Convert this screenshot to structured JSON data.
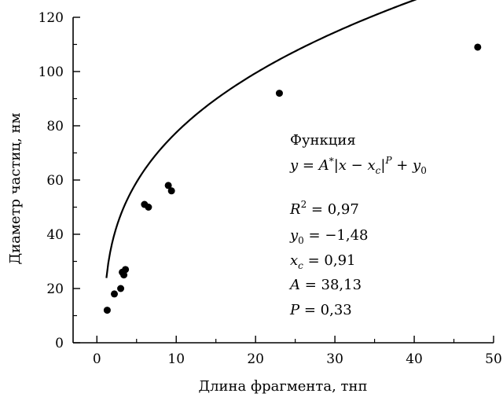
{
  "chart_data": {
    "type": "scatter",
    "xlabel": "Длина фрагмента, тнп",
    "ylabel": "Диаметр частиц, нм",
    "xlim": [
      -3,
      50
    ],
    "ylim": [
      0,
      120
    ],
    "xticks": [
      0,
      10,
      20,
      30,
      40,
      50
    ],
    "yticks": [
      0,
      20,
      40,
      60,
      80,
      100,
      120
    ],
    "xtick_labels": [
      "0",
      "10",
      "20",
      "30",
      "40",
      "50"
    ],
    "ytick_labels": [
      "0",
      "20",
      "40",
      "60",
      "80",
      "100",
      "120"
    ],
    "grid": false,
    "series": [
      {
        "points": [
          {
            "x": 1.3,
            "y": 12
          },
          {
            "x": 2.2,
            "y": 18
          },
          {
            "x": 3.0,
            "y": 20
          },
          {
            "x": 3.2,
            "y": 26
          },
          {
            "x": 3.4,
            "y": 25
          },
          {
            "x": 3.6,
            "y": 27
          },
          {
            "x": 6.0,
            "y": 51
          },
          {
            "x": 6.5,
            "y": 50
          },
          {
            "x": 9.0,
            "y": 58
          },
          {
            "x": 9.4,
            "y": 56
          },
          {
            "x": 23.0,
            "y": 92
          },
          {
            "x": 48.0,
            "y": 109
          }
        ]
      }
    ],
    "fit": {
      "x_range": [
        1.2,
        48
      ],
      "A": 38.13,
      "xc": 0.91,
      "P": 0.33,
      "y0": -1.48
    },
    "annotation": {
      "heading": "Функция",
      "formula": "y = A*|x − xc|P + y0",
      "r2_value": "0,97",
      "y0_value": "−1,48",
      "xc_value": "0,91",
      "A_value": "38,13",
      "P_value": "0,33"
    }
  }
}
